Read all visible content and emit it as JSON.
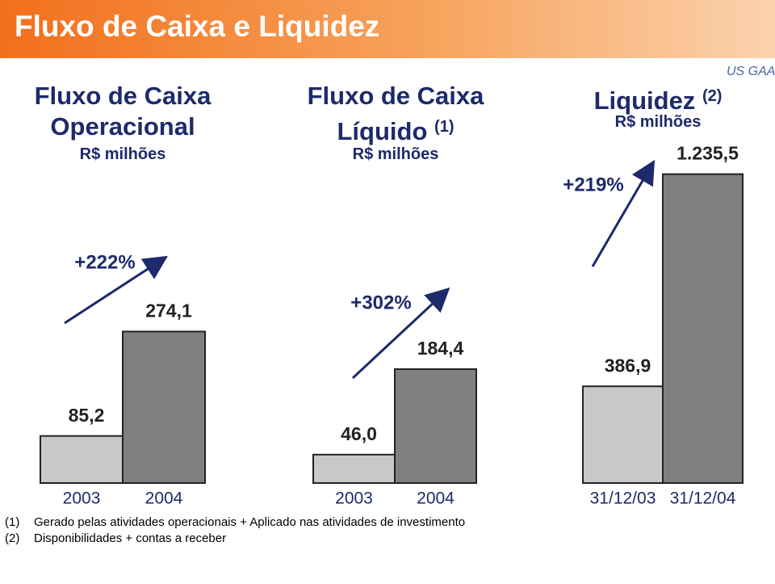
{
  "header": {
    "title": "Fluxo de Caixa e Liquidez",
    "tag": "US GAAP"
  },
  "chart_data": [
    {
      "type": "bar",
      "title": "Fluxo de Caixa Operacional",
      "subtitle": "R$ milhões",
      "annotation": "+222%",
      "categories": [
        "2003",
        "2004"
      ],
      "values": [
        85.2,
        274.1
      ],
      "value_labels": [
        "85,2",
        "274,1"
      ],
      "colors": [
        "#c8c8c8",
        "#808080"
      ],
      "ylim": [
        0,
        570
      ]
    },
    {
      "type": "bar",
      "title": "Fluxo de Caixa Líquido",
      "title_note": "(1)",
      "subtitle": "R$ milhões",
      "annotation": "+302%",
      "categories": [
        "2003",
        "2004"
      ],
      "values": [
        46.0,
        184.4
      ],
      "value_labels": [
        "46,0",
        "184,4"
      ],
      "colors": [
        "#c8c8c8",
        "#808080"
      ],
      "ylim": [
        0,
        510
      ]
    },
    {
      "type": "bar",
      "title": "Liquidez",
      "title_note": "(2)",
      "subtitle": "R$ milhões",
      "annotation": "+219%",
      "categories": [
        "31/12/03",
        "31/12/04"
      ],
      "values": [
        386.9,
        1235.5
      ],
      "value_labels": [
        "386,9",
        "1.235,5"
      ],
      "colors": [
        "#c8c8c8",
        "#808080"
      ],
      "ylim": [
        0,
        1260
      ]
    }
  ],
  "footnotes": [
    {
      "marker": "(1)",
      "text": "Gerado pelas atividades operacionais + Aplicado nas atividades de investimento"
    },
    {
      "marker": "(2)",
      "text": "Disponibilidades + contas a receber"
    }
  ]
}
